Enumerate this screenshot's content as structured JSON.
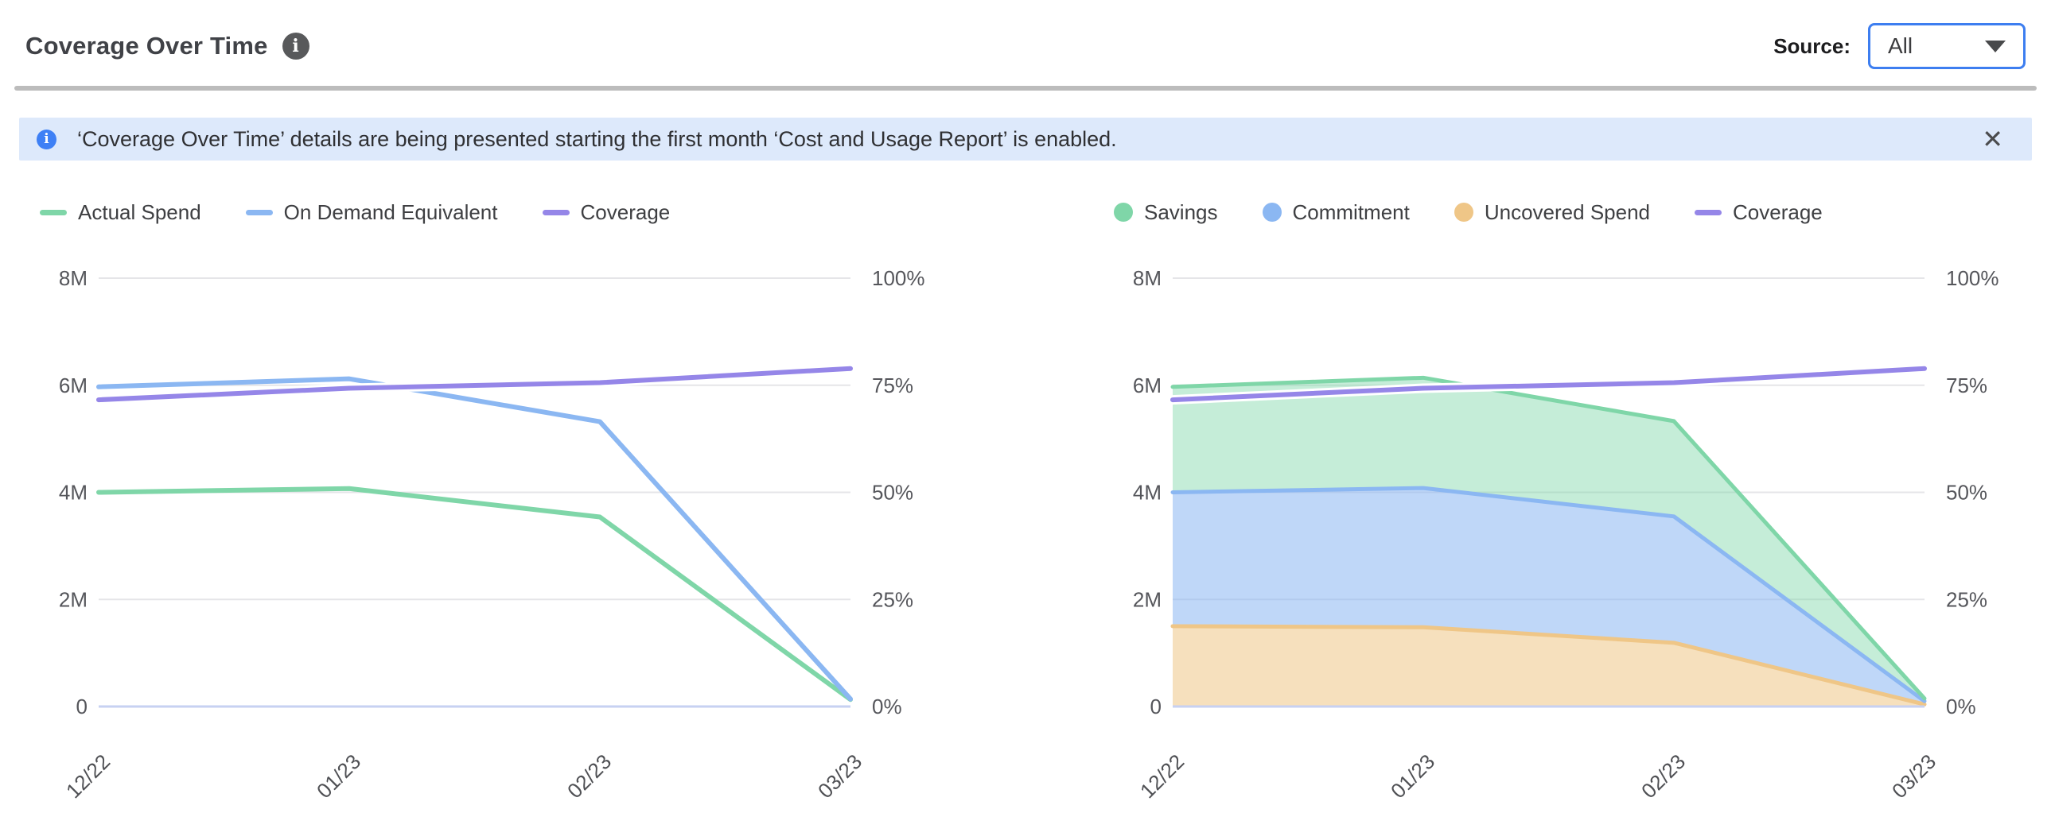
{
  "header": {
    "title": "Coverage Over Time",
    "source_label": "Source:",
    "source_value": "All"
  },
  "banner": {
    "text": "‘Coverage Over Time’ details are being presented starting the first month ‘Cost and Usage Report’ is enabled.",
    "close_glyph": "✕"
  },
  "colors": {
    "green": "#7fd6a8",
    "blue": "#8bb7f2",
    "purple": "#9586e8",
    "orange": "#efc687",
    "grid": "#e5e5e8",
    "baseline": "#c7d1f2",
    "banner_bg": "#dde9fb",
    "dropdown_border": "#3d7ef0"
  },
  "chart_data": [
    {
      "type": "line",
      "categories": [
        "12/22",
        "01/23",
        "02/23",
        "03/23"
      ],
      "y_left": {
        "ticks": [
          "0",
          "2M",
          "4M",
          "6M",
          "8M"
        ],
        "values_m": [
          0,
          2,
          4,
          6,
          8
        ],
        "max_m": 8
      },
      "y_right": {
        "ticks": [
          "0%",
          "25%",
          "50%",
          "75%",
          "100%"
        ],
        "values_pct": [
          0,
          25,
          50,
          75,
          100
        ],
        "max_pct": 100
      },
      "grid": true,
      "legend_position": "top-left",
      "series": [
        {
          "name": "Actual Spend",
          "kind": "line",
          "axis": "left",
          "color": "#7fd6a8",
          "values_m": [
            4.0,
            4.07,
            3.54,
            0.13
          ]
        },
        {
          "name": "On Demand Equivalent",
          "kind": "line",
          "axis": "left",
          "color": "#8bb7f2",
          "values_m": [
            5.97,
            6.12,
            5.32,
            0.14
          ]
        },
        {
          "name": "Coverage",
          "kind": "line",
          "axis": "right",
          "color": "#9586e8",
          "values_pct": [
            71.6,
            74.3,
            75.6,
            78.9
          ]
        }
      ]
    },
    {
      "type": "area",
      "stacked": true,
      "categories": [
        "12/22",
        "01/23",
        "02/23",
        "03/23"
      ],
      "y_left": {
        "ticks": [
          "0",
          "2M",
          "4M",
          "6M",
          "8M"
        ],
        "values_m": [
          0,
          2,
          4,
          6,
          8
        ],
        "max_m": 8
      },
      "y_right": {
        "ticks": [
          "0%",
          "25%",
          "50%",
          "75%",
          "100%"
        ],
        "values_pct": [
          0,
          25,
          50,
          75,
          100
        ],
        "max_pct": 100
      },
      "grid": true,
      "legend_position": "top-left",
      "stack_order_bottom_to_top": [
        "Uncovered Spend",
        "Commitment",
        "Savings"
      ],
      "series": [
        {
          "name": "Savings",
          "kind": "area",
          "axis": "left",
          "color": "#7fd6a8",
          "fill": "rgba(127,214,168,0.45)",
          "values_m": [
            1.97,
            2.06,
            1.78,
            0.05
          ]
        },
        {
          "name": "Commitment",
          "kind": "area",
          "axis": "left",
          "color": "#8bb7f2",
          "fill": "rgba(139,183,242,0.55)",
          "values_m": [
            2.5,
            2.6,
            2.36,
            0.06
          ]
        },
        {
          "name": "Uncovered Spend",
          "kind": "area",
          "axis": "left",
          "color": "#efc687",
          "fill": "rgba(239,198,135,0.55)",
          "values_m": [
            1.5,
            1.48,
            1.19,
            0.04
          ]
        },
        {
          "name": "Coverage",
          "kind": "line",
          "axis": "right",
          "color": "#9586e8",
          "values_pct": [
            71.6,
            74.3,
            75.6,
            78.9
          ]
        }
      ]
    }
  ]
}
